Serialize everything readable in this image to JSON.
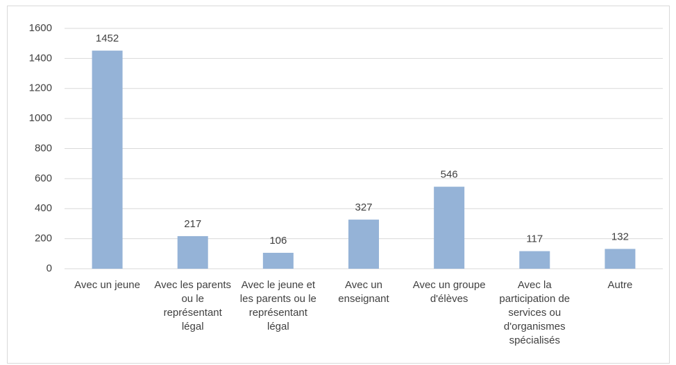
{
  "chart_data": {
    "type": "bar",
    "categories": [
      "Avec un jeune",
      "Avec les parents ou le représentant légal",
      "Avec le jeune et les parents ou le représentant légal",
      "Avec un enseignant",
      "Avec un groupe d'élèves",
      "Avec la participation de services ou d'organismes spécialisés",
      "Autre"
    ],
    "values": [
      1452,
      217,
      106,
      327,
      546,
      117,
      132
    ],
    "color": "#95b3d7",
    "ylim": [
      0,
      1600
    ],
    "yticks": [
      0,
      200,
      400,
      600,
      800,
      1000,
      1200,
      1400,
      1600
    ],
    "grid": true
  }
}
